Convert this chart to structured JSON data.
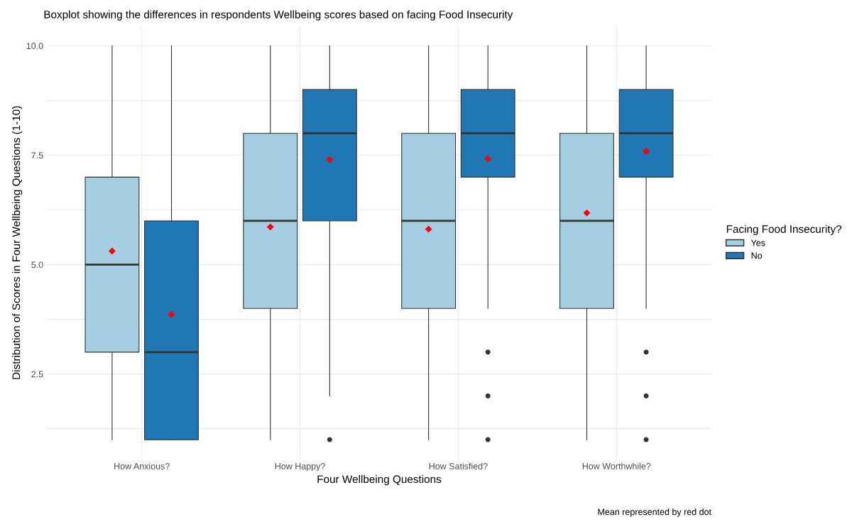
{
  "chart_data": {
    "type": "box",
    "title": "Boxplot showing the differences in respondents Wellbeing scores based on facing Food Insecurity",
    "xlabel": "Four Wellbeing Questions",
    "ylabel": "Distribution of Scores in Four Wellbeing Questions (1-10)",
    "legend_title": "Facing Food Insecurity?",
    "annotations": [
      "Mean represented by red dot"
    ],
    "categories": [
      "How Anxious?",
      "How Happy?",
      "How Satisfied?",
      "How Worthwhile?"
    ],
    "ylim": [
      0.55,
      10.45
    ],
    "yticks": [
      {
        "value": 1.25,
        "label": null
      },
      {
        "value": 2.5,
        "label": "2.5"
      },
      {
        "value": 3.75,
        "label": null
      },
      {
        "value": 5.0,
        "label": "5.0"
      },
      {
        "value": 6.25,
        "label": null
      },
      {
        "value": 7.5,
        "label": "7.5"
      },
      {
        "value": 8.75,
        "label": null
      },
      {
        "value": 10.0,
        "label": "10.0"
      }
    ],
    "grid": true,
    "legend": "right",
    "series": [
      {
        "name": "Yes",
        "color": "#a6cee3",
        "boxes": [
          {
            "low": 1,
            "q1": 3,
            "median": 5,
            "q3": 7,
            "high": 10,
            "mean": 5.31
          },
          {
            "low": 1,
            "q1": 4,
            "median": 6,
            "q3": 8,
            "high": 10,
            "mean": 5.86
          },
          {
            "low": 1,
            "q1": 4,
            "median": 6,
            "q3": 8,
            "high": 10,
            "mean": 5.81
          },
          {
            "low": 1,
            "q1": 4,
            "median": 6,
            "q3": 8,
            "high": 10,
            "mean": 6.18
          }
        ]
      },
      {
        "name": "No",
        "color": "#1f78b4",
        "boxes": [
          {
            "low": 1,
            "q1": 1,
            "median": 3,
            "q3": 6,
            "high": 10,
            "mean": 3.86
          },
          {
            "low": 2,
            "q1": 6,
            "median": 8,
            "q3": 9,
            "high": 10,
            "mean": 7.4,
            "outliers": [
              1
            ]
          },
          {
            "low": 4,
            "q1": 7,
            "median": 8,
            "q3": 9,
            "high": 10,
            "mean": 7.42,
            "outliers": [
              1,
              2,
              3
            ]
          },
          {
            "low": 4,
            "q1": 7,
            "median": 8,
            "q3": 9,
            "high": 10,
            "mean": 7.59,
            "outliers": [
              1,
              2,
              3
            ]
          }
        ]
      }
    ]
  }
}
